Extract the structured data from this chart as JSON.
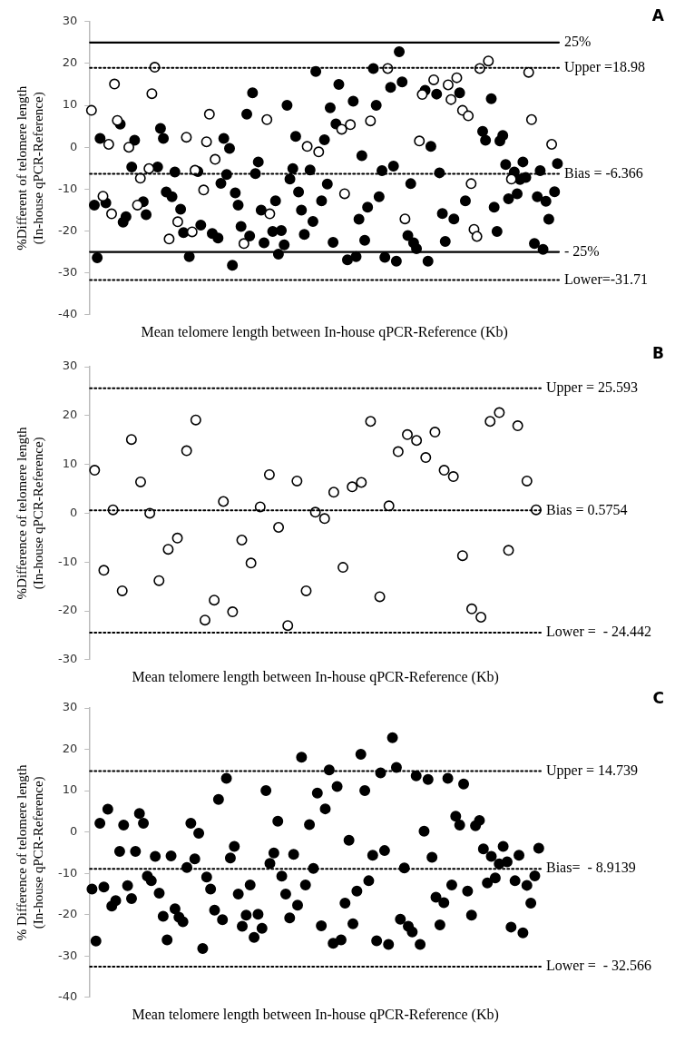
{
  "chart_data": [
    {
      "type": "scatter",
      "xlabel": "Mean telomere length between In-house qPCR-Reference (Kb)",
      "ylabel": "%Different of telomere length\n(In-house qPCR-Reference)",
      "annotations": [
        "A"
      ],
      "marker": "circle",
      "tick_labels": "y",
      "ylim": [
        -40,
        30
      ],
      "yticks": [
        -40,
        -30,
        -20,
        -10,
        0,
        10,
        20,
        30
      ],
      "categories": [
        null,
        null,
        null,
        null,
        null,
        null,
        null,
        null,
        null,
        null,
        null,
        null,
        null,
        null,
        null,
        null,
        null,
        null,
        null,
        null,
        null,
        null,
        null,
        null,
        null,
        null,
        null,
        null,
        null,
        null,
        null,
        null,
        null,
        null,
        null,
        null,
        null,
        null,
        null,
        null,
        null,
        null,
        null,
        null,
        null,
        null,
        null,
        null,
        null,
        null,
        null,
        null,
        null,
        null,
        null,
        null,
        null,
        null,
        null,
        null,
        null,
        null,
        null,
        null,
        null,
        null,
        null,
        null,
        null,
        null,
        null,
        null,
        null,
        null,
        null,
        null,
        null,
        null,
        null,
        null,
        null,
        null,
        null,
        null,
        null,
        null,
        null,
        null,
        null,
        null,
        null,
        null,
        null,
        null,
        null,
        null,
        null,
        null,
        null,
        null,
        null,
        null,
        null,
        null,
        null,
        null,
        null,
        null,
        null,
        null,
        null,
        null,
        null,
        null,
        null,
        null,
        null,
        null,
        null,
        null,
        null,
        null,
        null,
        null,
        null,
        null,
        null,
        null,
        null,
        null,
        null,
        null,
        null,
        null,
        null,
        null,
        null,
        null,
        null,
        null,
        null,
        null,
        null,
        null,
        null,
        null,
        null,
        null,
        null,
        null,
        null,
        null,
        null,
        null,
        null,
        null,
        null,
        null,
        null,
        null,
        null,
        null,
        null
      ],
      "ref_lines": [
        {
          "axis": "y",
          "value": 25,
          "label": "25%",
          "line_style": "solid"
        },
        {
          "axis": "y",
          "value": 18.98,
          "label": "Upper =18.98",
          "line_style": "dotted"
        },
        {
          "axis": "y",
          "value": -6.366,
          "label": "Bias = -6.366",
          "line_style": "dotted"
        },
        {
          "axis": "y",
          "value": -25,
          "label": "- 25%",
          "line_style": "solid"
        },
        {
          "axis": "y",
          "value": -31.71,
          "label": "Lower=-31.71",
          "line_style": "dotted"
        }
      ],
      "series": [
        {
          "color": "#000000",
          "values": [
            null,
            -13.8,
            -26.4,
            2.1,
            null,
            -13.3,
            null,
            null,
            null,
            null,
            5.5,
            -17.9,
            -16.6,
            null,
            -4.7,
            1.7,
            null,
            null,
            -13.0,
            -16.1,
            null,
            null,
            null,
            -4.7,
            4.5,
            2.1,
            -10.7,
            null,
            -11.8,
            -5.9,
            null,
            -14.8,
            -20.4,
            null,
            -26.1,
            null,
            null,
            -5.8,
            -18.6,
            null,
            null,
            null,
            -20.6,
            null,
            -21.7,
            -8.6,
            2.1,
            -6.5,
            -0.3,
            -28.2,
            -10.9,
            -13.8,
            -18.9,
            null,
            7.9,
            -21.2,
            13.0,
            -6.3,
            -3.5,
            -15.0,
            -22.8,
            null,
            null,
            -20.1,
            -12.8,
            -25.5,
            -19.9,
            -23.3,
            10.0,
            -7.6,
            -5.1,
            2.6,
            -10.7,
            -15.0,
            -20.8,
            null,
            -5.4,
            -17.7,
            18.1,
            null,
            -12.8,
            1.8,
            -8.8,
            9.4,
            -22.7,
            5.6,
            15.0,
            null,
            null,
            -26.9,
            null,
            11.0,
            -26.1,
            -17.2,
            -2.0,
            -22.2,
            -14.3,
            null,
            18.8,
            10.0,
            -11.8,
            -5.6,
            -26.3,
            null,
            14.3,
            -4.5,
            -27.2,
            22.8,
            15.6,
            null,
            -21.1,
            -8.7,
            -22.8,
            -24.2,
            null,
            null,
            13.6,
            -27.2,
            0.2,
            null,
            12.7,
            -6.1,
            -15.8,
            -22.5,
            null,
            null,
            -17.1,
            null,
            13.0,
            null,
            -12.8,
            null,
            null,
            null,
            null,
            null,
            3.8,
            1.7,
            null,
            11.6,
            -14.3,
            -20.1,
            1.5,
            2.8,
            -4.1,
            -12.3,
            null,
            -5.9,
            -11.1,
            -7.7,
            -3.5,
            -7.2,
            null,
            null,
            -23.0,
            -11.8,
            -5.6,
            -24.4,
            -12.9,
            -17.2,
            null,
            -10.6,
            -3.9
          ]
        },
        {
          "color": "#ffffff",
          "values": [
            8.8,
            null,
            null,
            null,
            -11.7,
            null,
            0.7,
            -15.9,
            15.1,
            6.4,
            null,
            null,
            null,
            0.0,
            null,
            null,
            -13.8,
            -7.4,
            null,
            null,
            -5.1,
            12.8,
            19.1,
            null,
            null,
            null,
            null,
            -21.9,
            null,
            null,
            -17.8,
            null,
            null,
            2.4,
            null,
            -20.2,
            -5.5,
            null,
            null,
            -10.2,
            1.3,
            7.9,
            null,
            -2.9,
            null,
            null,
            null,
            null,
            null,
            null,
            null,
            null,
            null,
            -23.0,
            null,
            null,
            null,
            null,
            null,
            null,
            null,
            6.6,
            -15.9,
            null,
            null,
            null,
            null,
            null,
            null,
            null,
            null,
            null,
            null,
            null,
            null,
            0.2,
            null,
            null,
            null,
            -1.1,
            null,
            null,
            null,
            null,
            null,
            null,
            null,
            4.3,
            -11.1,
            null,
            5.4,
            null,
            null,
            null,
            null,
            null,
            null,
            6.3,
            null,
            null,
            null,
            null,
            null,
            18.8,
            null,
            null,
            null,
            null,
            null,
            -17.1,
            null,
            null,
            null,
            null,
            1.5,
            12.6,
            null,
            null,
            null,
            16.1,
            null,
            null,
            null,
            null,
            14.9,
            11.4,
            null,
            16.6,
            null,
            8.8,
            null,
            7.5,
            -8.7,
            -19.6,
            -21.3,
            18.8,
            null,
            null,
            20.6,
            null,
            null,
            null,
            null,
            null,
            null,
            null,
            -7.6,
            null,
            null,
            null,
            null,
            null,
            17.9,
            6.6,
            null,
            null,
            null,
            null,
            null,
            null,
            0.7,
            null,
            null
          ]
        }
      ]
    },
    {
      "type": "scatter",
      "xlabel": "Mean telomere length between In-house qPCR-Reference (Kb)",
      "ylabel": "%Difference of telomere length\n(In-house qPCR-Reference)",
      "annotations": [
        "B"
      ],
      "marker": "circle",
      "tick_labels": "y",
      "ylim": [
        -30,
        30
      ],
      "yticks": [
        -30,
        -20,
        -10,
        0,
        10,
        20,
        30
      ],
      "categories": [
        null,
        null,
        null,
        null,
        null,
        null,
        null,
        null,
        null,
        null,
        null,
        null,
        null,
        null,
        null,
        null,
        null,
        null,
        null,
        null,
        null,
        null,
        null,
        null,
        null,
        null,
        null,
        null,
        null,
        null,
        null,
        null,
        null,
        null,
        null,
        null,
        null,
        null,
        null,
        null,
        null,
        null,
        null,
        null,
        null,
        null,
        null,
        null,
        null
      ],
      "ref_lines": [
        {
          "axis": "y",
          "value": 25.593,
          "label": "Upper = 25.593",
          "line_style": "dotted"
        },
        {
          "axis": "y",
          "value": 0.5754,
          "label": "Bias = 0.5754",
          "line_style": "dotted"
        },
        {
          "axis": "y",
          "value": -24.442,
          "label": "Lower =  - 24.442",
          "line_style": "dotted"
        }
      ],
      "series": [
        {
          "color": "#ffffff",
          "values": [
            8.8,
            -11.7,
            0.7,
            -15.9,
            15.1,
            6.4,
            0.0,
            -13.8,
            -7.4,
            -5.1,
            12.8,
            19.1,
            -21.9,
            -17.8,
            2.4,
            -20.2,
            -5.5,
            -10.2,
            1.3,
            7.9,
            -2.9,
            -23.0,
            6.6,
            -15.9,
            0.2,
            -1.1,
            4.3,
            -11.1,
            5.4,
            6.3,
            18.8,
            -17.1,
            1.5,
            12.6,
            16.1,
            14.9,
            11.4,
            16.6,
            8.8,
            7.5,
            -8.7,
            -19.6,
            -21.3,
            18.8,
            20.6,
            -7.6,
            17.9,
            6.6,
            0.7
          ]
        }
      ]
    },
    {
      "type": "scatter",
      "xlabel": "Mean telomere length between In-house qPCR-Reference (Kb)",
      "ylabel": "% Difference of telomere length\n(In-house qPCR-Reference)",
      "annotations": [
        "C"
      ],
      "marker": "circle",
      "tick_labels": "y",
      "ylim": [
        -40,
        30
      ],
      "yticks": [
        -40,
        -30,
        -20,
        -10,
        0,
        10,
        20,
        30
      ],
      "categories": [
        null,
        null,
        null,
        null,
        null,
        null,
        null,
        null,
        null,
        null,
        null,
        null,
        null,
        null,
        null,
        null,
        null,
        null,
        null,
        null,
        null,
        null,
        null,
        null,
        null,
        null,
        null,
        null,
        null,
        null,
        null,
        null,
        null,
        null,
        null,
        null,
        null,
        null,
        null,
        null,
        null,
        null,
        null,
        null,
        null,
        null,
        null,
        null,
        null,
        null,
        null,
        null,
        null,
        null,
        null,
        null,
        null,
        null,
        null,
        null,
        null,
        null,
        null,
        null,
        null,
        null,
        null,
        null,
        null,
        null,
        null,
        null,
        null,
        null,
        null,
        null,
        null,
        null,
        null,
        null,
        null,
        null,
        null,
        null,
        null,
        null,
        null,
        null,
        null,
        null,
        null,
        null,
        null,
        null,
        null,
        null,
        null,
        null,
        null,
        null,
        null,
        null,
        null,
        null,
        null,
        null,
        null,
        null,
        null,
        null,
        null,
        null,
        null,
        null
      ],
      "ref_lines": [
        {
          "axis": "y",
          "value": 14.739,
          "label": "Upper = 14.739",
          "line_style": "dotted"
        },
        {
          "axis": "y",
          "value": -8.9139,
          "label": "Bias=  - 8.9139",
          "line_style": "dotted"
        },
        {
          "axis": "y",
          "value": -32.566,
          "label": "Lower =  - 32.566",
          "line_style": "dotted"
        }
      ],
      "series": [
        {
          "color": "#000000",
          "values": [
            -13.8,
            -26.4,
            2.1,
            -13.3,
            5.5,
            -17.9,
            -16.6,
            -4.7,
            1.7,
            -13.0,
            -16.1,
            -4.7,
            4.5,
            2.1,
            -10.7,
            -11.8,
            -5.9,
            -14.8,
            -20.4,
            -26.1,
            -5.8,
            -18.6,
            -20.6,
            -21.7,
            -8.6,
            2.1,
            -6.5,
            -0.3,
            -28.2,
            -10.9,
            -13.8,
            -18.9,
            7.9,
            -21.2,
            13.0,
            -6.3,
            -3.5,
            -15.0,
            -22.8,
            -20.1,
            -12.8,
            -25.5,
            -19.9,
            -23.3,
            10.0,
            -7.6,
            -5.1,
            2.6,
            -10.7,
            -15.0,
            -20.8,
            -5.4,
            -17.7,
            18.1,
            -12.8,
            1.8,
            -8.8,
            9.4,
            -22.7,
            5.6,
            15.0,
            -26.9,
            11.0,
            -26.1,
            -17.2,
            -2.0,
            -22.2,
            -14.3,
            18.8,
            10.0,
            -11.8,
            -5.6,
            -26.3,
            14.3,
            -4.5,
            -27.2,
            22.8,
            15.6,
            -21.1,
            -8.7,
            -22.8,
            -24.2,
            13.6,
            -27.2,
            0.2,
            12.7,
            -6.1,
            -15.8,
            -22.5,
            -17.1,
            13.0,
            -12.8,
            3.8,
            1.7,
            11.6,
            -14.3,
            -20.1,
            1.5,
            2.8,
            -4.1,
            -12.3,
            -5.9,
            -11.1,
            -7.7,
            -3.5,
            -7.2,
            -23.0,
            -11.8,
            -5.6,
            -24.4,
            -12.9,
            -17.2,
            -10.6,
            -3.9
          ]
        }
      ]
    }
  ]
}
